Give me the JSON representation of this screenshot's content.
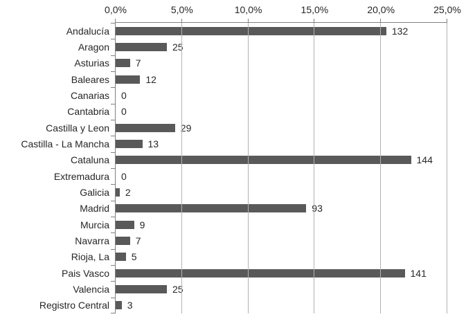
{
  "chart_data": {
    "type": "bar",
    "orientation": "horizontal",
    "title": "",
    "xlabel": "",
    "ylabel": "",
    "legend": false,
    "grid": true,
    "categories": [
      "Andalucía",
      "Aragon",
      "Asturias",
      "Baleares",
      "Canarias",
      "Cantabria",
      "Castilla y Leon",
      "Castilla - La Mancha",
      "Cataluna",
      "Extremadura",
      "Galicia",
      "Madrid",
      "Murcia",
      "Navarra",
      "Rioja, La",
      "Pais Vasco",
      "Valencia",
      "Registro Central"
    ],
    "values": [
      132,
      25,
      7,
      12,
      0,
      0,
      29,
      13,
      144,
      0,
      2,
      93,
      9,
      7,
      5,
      141,
      25,
      3
    ],
    "value_labels": [
      "132",
      "25",
      "7",
      "12",
      "0",
      "0",
      "29",
      "13",
      "144",
      "0",
      "2",
      "93",
      "9",
      "7",
      "5",
      "141",
      "25",
      "3"
    ],
    "percents": [
      20.4,
      3.86,
      1.08,
      1.85,
      0,
      0,
      4.48,
      2.01,
      22.26,
      0,
      0.31,
      14.37,
      1.39,
      1.08,
      0.77,
      21.79,
      3.86,
      0.46
    ],
    "axis": {
      "position": "top",
      "min": 0,
      "max": 25,
      "step": 5,
      "tick_labels": [
        "0,0%",
        "5,0%",
        "10,0%",
        "15,0%",
        "20,0%",
        "25,0%"
      ]
    },
    "colors": {
      "bar": "#595959",
      "gridline": "#b3b3b3",
      "axis": "#808080",
      "text": "#262626",
      "background": "#ffffff"
    }
  }
}
